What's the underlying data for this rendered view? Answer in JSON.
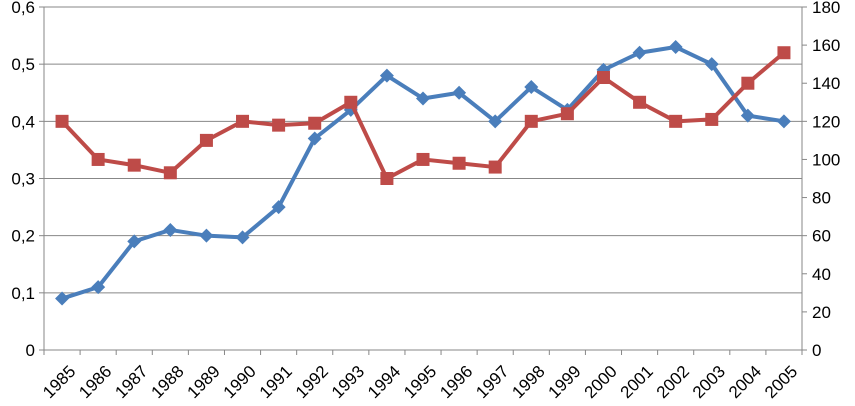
{
  "chart_data": {
    "type": "line",
    "title": "",
    "xlabel": "",
    "ylabel_left": "",
    "ylabel_right": "",
    "categories": [
      "1985",
      "1986",
      "1987",
      "1988",
      "1989",
      "1990",
      "1991",
      "1992",
      "1993",
      "1994",
      "1995",
      "1996",
      "1997",
      "1998",
      "1999",
      "2000",
      "2001",
      "2002",
      "2003",
      "2004",
      "2005"
    ],
    "y_left": {
      "range": [
        0,
        0.6
      ],
      "ticks": [
        0,
        0.1,
        0.2,
        0.3,
        0.4,
        0.5,
        0.6
      ],
      "tick_labels": [
        "0",
        "0,1",
        "0,2",
        "0,3",
        "0,4",
        "0,5",
        "0,6"
      ]
    },
    "y_right": {
      "range": [
        0,
        180
      ],
      "ticks": [
        0,
        20,
        40,
        60,
        80,
        100,
        120,
        140,
        160,
        180
      ],
      "tick_labels": [
        "0",
        "20",
        "40",
        "60",
        "80",
        "100",
        "120",
        "140",
        "160",
        "180"
      ]
    },
    "grid": true,
    "legend": "none",
    "series": [
      {
        "axis": "left",
        "marker": "diamond",
        "color": "#4a7ebb",
        "values": [
          0.09,
          0.11,
          0.19,
          0.21,
          0.2,
          0.197,
          0.25,
          0.37,
          0.42,
          0.48,
          0.44,
          0.45,
          0.4,
          0.46,
          0.42,
          0.49,
          0.52,
          0.53,
          0.5,
          0.41,
          0.4
        ]
      },
      {
        "axis": "right",
        "marker": "square",
        "color": "#be4b48",
        "values": [
          120,
          100,
          97,
          93,
          110,
          120,
          118,
          119,
          130,
          90,
          100,
          98,
          96,
          120,
          124,
          143,
          130,
          120,
          121,
          140,
          156
        ]
      }
    ]
  }
}
